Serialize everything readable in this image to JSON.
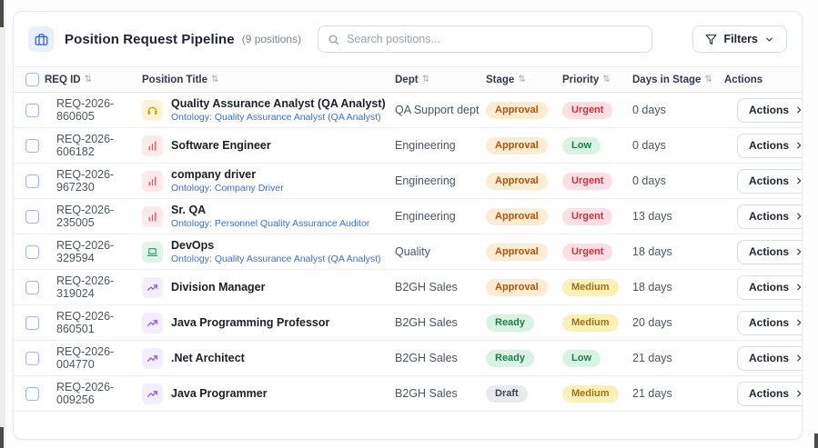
{
  "header": {
    "app_icon": "briefcase-icon",
    "title": "Position Request Pipeline",
    "count": "(9 positions)",
    "search_placeholder": "Search positions...",
    "filters_label": "Filters"
  },
  "table": {
    "columns": [
      {
        "label": "REQ ID",
        "sortable": true
      },
      {
        "label": "Position Title",
        "sortable": true
      },
      {
        "label": "Dept",
        "sortable": true
      },
      {
        "label": "Stage",
        "sortable": true
      },
      {
        "label": "Priority",
        "sortable": true
      },
      {
        "label": "Days in Stage",
        "sortable": true
      },
      {
        "label": "Actions",
        "sortable": false
      }
    ],
    "actions_label": "Actions"
  },
  "badge_styles": {
    "Approval": {
      "bg": "#fcecd3",
      "fg": "#b45309"
    },
    "Urgent": {
      "bg": "#fbdfe2",
      "fg": "#cc3340"
    },
    "Low": {
      "bg": "#d8f3e3",
      "fg": "#1a7f4e"
    },
    "Medium": {
      "bg": "#faf0b8",
      "fg": "#9c7513"
    },
    "Ready": {
      "bg": "#d8f3e3",
      "fg": "#1a7f4e"
    },
    "Draft": {
      "bg": "#e9eaee",
      "fg": "#3f4652"
    }
  },
  "icon_styles": {
    "headphones-icon": {
      "bg": "#fdf3d8",
      "fg": "#d99e06"
    },
    "bar-chart-icon": {
      "bg": "#fdeaea",
      "fg": "#e35454"
    },
    "laptop-icon": {
      "bg": "#def5e9",
      "fg": "#34a873"
    },
    "trending-up-icon": {
      "bg": "#f4edfd",
      "fg": "#8b5cf6"
    }
  },
  "rows": [
    {
      "req_id": "REQ-2026-860605",
      "icon": "headphones-icon",
      "title": "Quality Assurance Analyst (QA Analyst)",
      "ontology": "Ontology: Quality Assurance Analyst (QA Analyst)",
      "dept": "QA Support dept",
      "stage": "Approval",
      "priority": "Urgent",
      "days": "0 days"
    },
    {
      "req_id": "REQ-2026-606182",
      "icon": "bar-chart-icon",
      "title": "Software Engineer",
      "ontology": null,
      "dept": "Engineering",
      "stage": "Approval",
      "priority": "Low",
      "days": "0 days"
    },
    {
      "req_id": "REQ-2026-967230",
      "icon": "bar-chart-icon",
      "title": "company driver",
      "ontology": "Ontology: Company Driver",
      "dept": "Engineering",
      "stage": "Approval",
      "priority": "Urgent",
      "days": "0 days"
    },
    {
      "req_id": "REQ-2026-235005",
      "icon": "bar-chart-icon",
      "title": "Sr. QA",
      "ontology": "Ontology: Personnel Quality Assurance Auditor",
      "dept": "Engineering",
      "stage": "Approval",
      "priority": "Urgent",
      "days": "13 days"
    },
    {
      "req_id": "REQ-2026-329594",
      "icon": "laptop-icon",
      "title": "DevOps",
      "ontology": "Ontology: Quality Assurance Analyst (QA Analyst)",
      "dept": "Quality",
      "stage": "Approval",
      "priority": "Urgent",
      "days": "18 days"
    },
    {
      "req_id": "REQ-2026-319024",
      "icon": "trending-up-icon",
      "title": "Division Manager",
      "ontology": null,
      "dept": "B2GH Sales",
      "stage": "Approval",
      "priority": "Medium",
      "days": "18 days"
    },
    {
      "req_id": "REQ-2026-860501",
      "icon": "trending-up-icon",
      "title": "Java Programming Professor",
      "ontology": null,
      "dept": "B2GH Sales",
      "stage": "Ready",
      "priority": "Medium",
      "days": "20 days"
    },
    {
      "req_id": "REQ-2026-004770",
      "icon": "trending-up-icon",
      "title": ".Net Architect",
      "ontology": null,
      "dept": "B2GH Sales",
      "stage": "Ready",
      "priority": "Low",
      "days": "21 days"
    },
    {
      "req_id": "REQ-2026-009256",
      "icon": "trending-up-icon",
      "title": "Java Programmer",
      "ontology": null,
      "dept": "B2GH Sales",
      "stage": "Draft",
      "priority": "Medium",
      "days": "21 days"
    }
  ]
}
